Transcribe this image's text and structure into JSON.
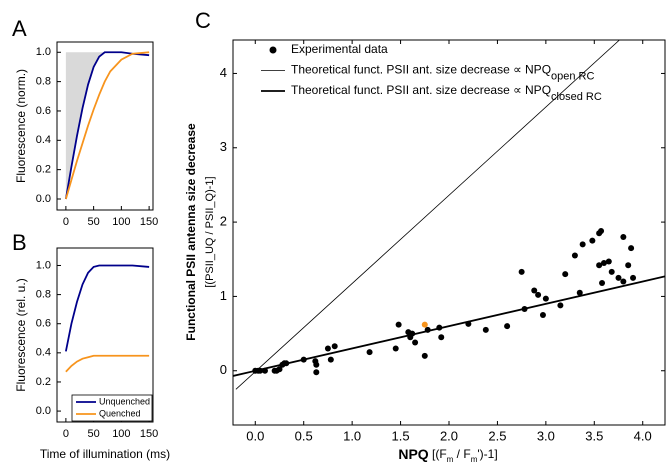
{
  "chart_data": [
    {
      "type": "line",
      "panel_label": "A",
      "y_label": "Fluorescence (norm.)",
      "shade": "#d9d9d9",
      "xlim": [
        -16,
        157
      ],
      "ylim": [
        -0.075,
        1.07
      ],
      "xticks": [
        0,
        50,
        100,
        150
      ],
      "yticks": [
        {
          "value": 0,
          "label": "0.0"
        },
        {
          "value": 0.2,
          "label": "0.2"
        },
        {
          "value": 0.4,
          "label": "0.4"
        },
        {
          "value": 0.6,
          "label": "0.6"
        },
        {
          "value": 0.8,
          "label": "0.8"
        },
        {
          "value": 1,
          "label": "1.0"
        }
      ],
      "series": [
        {
          "color": "#00008b",
          "x": [
            0,
            10,
            20,
            30,
            40,
            50,
            60,
            70,
            80,
            100,
            120,
            150
          ],
          "values": [
            0,
            0.22,
            0.43,
            0.62,
            0.78,
            0.9,
            0.97,
            1.0,
            1.0,
            1.0,
            0.99,
            0.98
          ]
        },
        {
          "color": "#f7941d",
          "x": [
            0,
            10,
            20,
            30,
            40,
            50,
            60,
            70,
            80,
            100,
            120,
            150
          ],
          "values": [
            0,
            0.13,
            0.26,
            0.38,
            0.5,
            0.61,
            0.71,
            0.8,
            0.87,
            0.95,
            0.99,
            1.0
          ]
        }
      ]
    },
    {
      "type": "line",
      "panel_label": "B",
      "y_label": "Fluorescence (rel. u.)",
      "x_label": "Time of illumination (ms)",
      "xlim": [
        -16,
        157
      ],
      "ylim": [
        -0.075,
        1.12
      ],
      "xticks": [
        0,
        50,
        100,
        150
      ],
      "yticks": [
        {
          "value": 0,
          "label": "0.0"
        },
        {
          "value": 0.2,
          "label": "0.2"
        },
        {
          "value": 0.4,
          "label": "0.4"
        },
        {
          "value": 0.6,
          "label": "0.6"
        },
        {
          "value": 0.8,
          "label": "0.8"
        },
        {
          "value": 1,
          "label": "1.0"
        }
      ],
      "series": [
        {
          "name": "Unquenched",
          "color": "#00008b",
          "x": [
            0,
            10,
            20,
            30,
            40,
            50,
            60,
            80,
            100,
            120,
            150
          ],
          "values": [
            0.41,
            0.6,
            0.75,
            0.87,
            0.95,
            0.99,
            1.0,
            1.0,
            1.0,
            1.0,
            0.99
          ]
        },
        {
          "name": "Quenched",
          "color": "#f7941d",
          "x": [
            0,
            10,
            20,
            30,
            40,
            50,
            60,
            80,
            100,
            120,
            150
          ],
          "values": [
            0.27,
            0.31,
            0.34,
            0.36,
            0.37,
            0.38,
            0.38,
            0.38,
            0.38,
            0.38,
            0.38
          ]
        }
      ]
    },
    {
      "type": "scatter",
      "panel_label": "C",
      "y_label": "Functional PSII antenna size decrease",
      "y_label_2": "[(PSII_UQ / PSII_Q)-1]",
      "x_label_parts": [
        {
          "text": "NPQ",
          "bold": true
        },
        {
          "text": " [(F"
        },
        {
          "text": "m",
          "sub": true
        },
        {
          "text": " / F"
        },
        {
          "text": "m",
          "sub": true
        },
        {
          "text": "')-1]"
        }
      ],
      "xlim": [
        -0.23,
        4.23
      ],
      "ylim": [
        -0.73,
        4.45
      ],
      "xticks": [
        {
          "value": 0,
          "label": "0.0"
        },
        {
          "value": 0.5,
          "label": "0.5"
        },
        {
          "value": 1,
          "label": "1.0"
        },
        {
          "value": 1.5,
          "label": "1.5"
        },
        {
          "value": 2,
          "label": "2.0"
        },
        {
          "value": 2.5,
          "label": "2.5"
        },
        {
          "value": 3,
          "label": "3.0"
        },
        {
          "value": 3.5,
          "label": "3.5"
        },
        {
          "value": 4,
          "label": "4.0"
        }
      ],
      "yticks": [
        0,
        1,
        2,
        3,
        4
      ],
      "series": [
        {
          "name": "Experimental data",
          "kind": "scatter",
          "color": "#000000",
          "x": [
            0,
            0.03,
            0.05,
            0.1,
            0.2,
            0.22,
            0.25,
            0.28,
            0.3,
            0.32,
            0.5,
            0.62,
            0.63,
            0.63,
            0.75,
            0.78,
            0.82,
            1.18,
            1.45,
            1.48,
            1.58,
            1.6,
            1.62,
            1.65,
            1.75,
            1.78,
            1.9,
            1.92,
            2.2,
            2.38,
            2.6,
            2.75,
            2.78,
            2.88,
            2.92,
            2.97,
            3.0,
            3.15,
            3.2,
            3.3,
            3.35,
            3.38,
            3.48,
            3.55,
            3.57,
            3.55,
            3.58,
            3.6,
            3.65,
            3.68,
            3.75,
            3.8,
            3.8,
            3.85,
            3.88,
            3.9
          ],
          "values": [
            0,
            0,
            0,
            0,
            0,
            0,
            0.02,
            0.08,
            0.1,
            0.1,
            0.15,
            0.13,
            0.08,
            -0.02,
            0.3,
            0.15,
            0.33,
            0.25,
            0.3,
            0.62,
            0.52,
            0.45,
            0.5,
            0.38,
            0.2,
            0.55,
            0.58,
            0.45,
            0.63,
            0.55,
            0.6,
            1.33,
            0.83,
            1.08,
            1.02,
            0.75,
            0.97,
            0.88,
            1.3,
            1.55,
            1.05,
            1.7,
            1.75,
            1.85,
            1.88,
            1.42,
            1.18,
            1.45,
            1.47,
            1.33,
            1.25,
            1.2,
            1.8,
            1.42,
            1.65,
            1.25
          ]
        },
        {
          "kind": "scatter",
          "color": "#f7941d",
          "x": [
            1.75
          ],
          "values": [
            0.62
          ]
        },
        {
          "name": "Theoretical funct. PSII ant. size decrease ∝ NPQ",
          "name_sub": "open RC",
          "kind": "line",
          "width": 0.8,
          "color": "#000000",
          "x": [
            -0.2,
            3.76
          ],
          "values": [
            -0.25,
            4.45
          ]
        },
        {
          "name": "Theoretical funct. PSII ant. size decrease ∝ NPQ",
          "name_sub": "closed RC",
          "kind": "line",
          "width": 1.8,
          "color": "#000000",
          "x": [
            -0.23,
            4.23
          ],
          "values": [
            -0.07,
            1.27
          ]
        }
      ]
    }
  ]
}
